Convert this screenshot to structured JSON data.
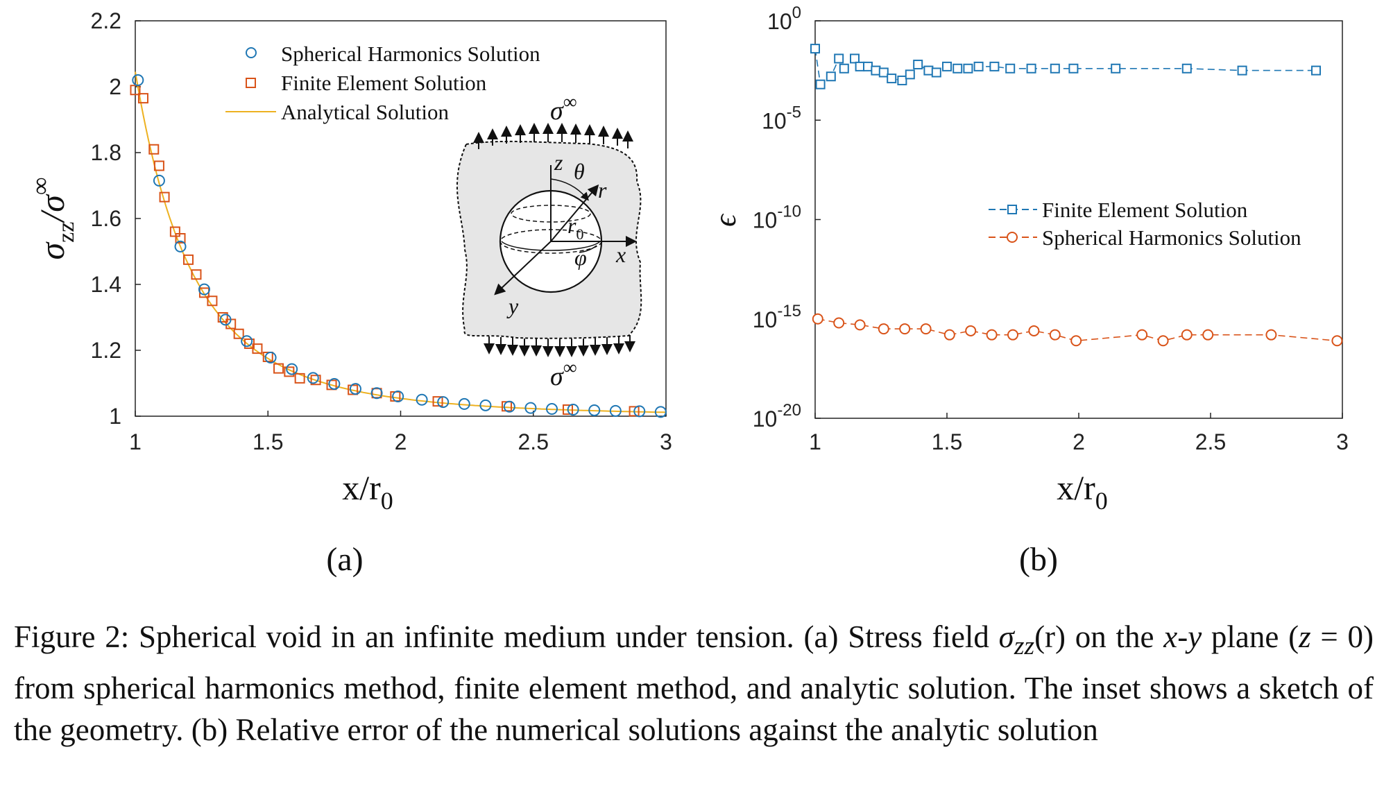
{
  "chart_data": [
    {
      "panel": "(a)",
      "type": "scatter",
      "xlabel": "x/r",
      "xlabel_sub": "0",
      "ylabel": "σ",
      "ylabel_sub": "zz",
      "ylabel_tail": "/σ",
      "ylabel_sup": "∞",
      "xlim": [
        1,
        3
      ],
      "ylim": [
        1,
        2.2
      ],
      "xticks": [
        1,
        1.5,
        2,
        2.5,
        3
      ],
      "xtick_labels": [
        "1",
        "1.5",
        "2",
        "2.5",
        "3"
      ],
      "yticks": [
        1,
        1.2,
        1.4,
        1.6,
        1.8,
        2,
        2.2
      ],
      "ytick_labels": [
        "1",
        "1.2",
        "1.4",
        "1.6",
        "1.8",
        "2",
        "2.2"
      ],
      "legend_position": "top",
      "series": [
        {
          "name": "Spherical Harmonics Solution",
          "marker": "circle",
          "color": "#1f77b4",
          "x": [
            1.01,
            1.09,
            1.17,
            1.26,
            1.34,
            1.42,
            1.51,
            1.59,
            1.67,
            1.75,
            1.83,
            1.91,
            1.99,
            2.08,
            2.16,
            2.24,
            2.32,
            2.41,
            2.49,
            2.57,
            2.65,
            2.73,
            2.81,
            2.9,
            2.98
          ],
          "y": [
            2.02,
            1.715,
            1.515,
            1.385,
            1.293,
            1.228,
            1.178,
            1.143,
            1.116,
            1.098,
            1.083,
            1.07,
            1.06,
            1.05,
            1.043,
            1.037,
            1.033,
            1.029,
            1.025,
            1.022,
            1.02,
            1.018,
            1.016,
            1.015,
            1.013
          ]
        },
        {
          "name": "Finite Element Solution",
          "marker": "square",
          "color": "#d95319",
          "x": [
            1.0,
            1.03,
            1.07,
            1.09,
            1.11,
            1.15,
            1.17,
            1.2,
            1.23,
            1.26,
            1.29,
            1.33,
            1.36,
            1.39,
            1.43,
            1.46,
            1.5,
            1.54,
            1.58,
            1.62,
            1.68,
            1.74,
            1.82,
            1.91,
            1.98,
            2.14,
            2.4,
            2.63,
            2.88
          ],
          "y": [
            1.99,
            1.965,
            1.81,
            1.76,
            1.665,
            1.56,
            1.54,
            1.475,
            1.43,
            1.375,
            1.35,
            1.3,
            1.28,
            1.25,
            1.22,
            1.205,
            1.18,
            1.145,
            1.135,
            1.115,
            1.11,
            1.095,
            1.08,
            1.07,
            1.06,
            1.045,
            1.03,
            1.02,
            1.015
          ]
        },
        {
          "name": "Analytical Solution",
          "marker": "line",
          "color": "#edb120"
        }
      ],
      "inset": {
        "top_label": "σ",
        "top_sup": "∞",
        "bottom_label": "σ",
        "bottom_sup": "∞",
        "axis_labels": [
          "z",
          "θ",
          "r",
          "r",
          "0",
          "φ",
          "x",
          "y"
        ]
      }
    },
    {
      "panel": "(b)",
      "type": "line",
      "scale": "log",
      "xlabel": "x/r",
      "xlabel_sub": "0",
      "ylabel": "ϵ",
      "xlim": [
        1,
        3
      ],
      "ylim": [
        1e-20,
        1
      ],
      "xticks": [
        1,
        1.5,
        2,
        2.5,
        3
      ],
      "xtick_labels": [
        "1",
        "1.5",
        "2",
        "2.5",
        "3"
      ],
      "yticks_exp": [
        0,
        -5,
        -10,
        -15,
        -20
      ],
      "ytick_base": "10",
      "ytick_exps": [
        "0",
        "-5",
        "-10",
        "-15",
        "-20"
      ],
      "legend_position": "center-right",
      "series": [
        {
          "name": "Finite Element Solution",
          "marker": "square",
          "line": "dashed",
          "color": "#1f77b4",
          "x": [
            1.0,
            1.02,
            1.06,
            1.09,
            1.11,
            1.15,
            1.17,
            1.2,
            1.23,
            1.26,
            1.29,
            1.33,
            1.36,
            1.39,
            1.43,
            1.46,
            1.5,
            1.54,
            1.58,
            1.62,
            1.68,
            1.74,
            1.82,
            1.91,
            1.98,
            2.14,
            2.41,
            2.62,
            2.9
          ],
          "log10_y": [
            -1.4,
            -3.2,
            -2.8,
            -1.9,
            -2.4,
            -1.9,
            -2.3,
            -2.3,
            -2.5,
            -2.6,
            -2.9,
            -3.0,
            -2.7,
            -2.2,
            -2.5,
            -2.6,
            -2.3,
            -2.4,
            -2.4,
            -2.3,
            -2.3,
            -2.4,
            -2.4,
            -2.4,
            -2.4,
            -2.4,
            -2.4,
            -2.5,
            -2.5
          ]
        },
        {
          "name": "Spherical Harmonics Solution",
          "marker": "circle",
          "line": "dashed",
          "color": "#d95319",
          "x": [
            1.01,
            1.09,
            1.17,
            1.26,
            1.34,
            1.42,
            1.51,
            1.59,
            1.67,
            1.75,
            1.83,
            1.91,
            1.99,
            2.24,
            2.32,
            2.41,
            2.49,
            2.73,
            2.98
          ],
          "log10_y": [
            -15.0,
            -15.2,
            -15.3,
            -15.5,
            -15.5,
            -15.5,
            -15.8,
            -15.6,
            -15.8,
            -15.8,
            -15.6,
            -15.8,
            -16.1,
            -15.8,
            -16.1,
            -15.8,
            -15.8,
            -15.8,
            -16.1
          ]
        }
      ]
    }
  ],
  "panel_labels": [
    "(a)",
    "(b)"
  ],
  "caption": {
    "prefix": "Figure 2: Spherical void in an infinite medium under tension. (a) Stress field ",
    "sym_sigma": "σ",
    "sym_sub": "zz",
    "sym_arg": "(r)",
    "mid1": " on the ",
    "sym_xy": "x-y",
    "mid2": " plane (",
    "sym_z0": "z",
    "mid3": " = 0) from spherical harmonics method, finite element method, and analytic solution. The inset shows a sketch of the geometry. (b) Relative error of the numerical solutions against the analytic solution"
  }
}
